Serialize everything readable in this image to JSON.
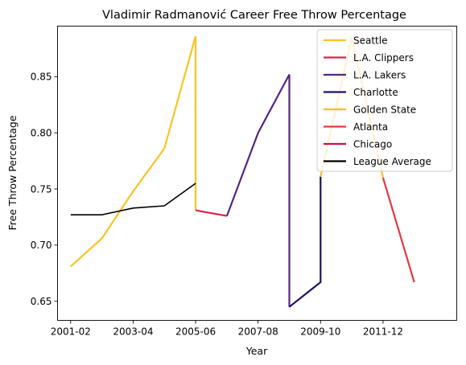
{
  "chart_data": {
    "type": "line",
    "title": "Vladimir Radmanović Career Free Throw Percentage",
    "xlabel": "Year",
    "ylabel": "Free Throw Percentage",
    "x_ticks": [
      "2001-02",
      "2003-04",
      "2005-06",
      "2007-08",
      "2009-10",
      "2011-12"
    ],
    "y_ticks": [
      "0.65",
      "0.70",
      "0.75",
      "0.80",
      "0.85"
    ],
    "xlim": [
      2000.58,
      2013.36
    ],
    "ylim": [
      0.633,
      0.895
    ],
    "grid": false,
    "legend_position": "upper right",
    "series": [
      {
        "name": "Seattle",
        "color": "#FDC322",
        "points": [
          [
            2001,
            0.681
          ],
          [
            2002,
            0.706
          ],
          [
            2003,
            0.748
          ],
          [
            2004,
            0.786
          ],
          [
            2005,
            0.886
          ],
          [
            2005,
            0.731
          ]
        ]
      },
      {
        "name": "L.A. Clippers",
        "color": "#E0214E",
        "points": [
          [
            2005,
            0.731
          ],
          [
            2006,
            0.726
          ]
        ]
      },
      {
        "name": "L.A. Lakers",
        "color": "#552583",
        "points": [
          [
            2006,
            0.726
          ],
          [
            2007,
            0.8
          ],
          [
            2008,
            0.852
          ],
          [
            2008,
            0.645
          ]
        ]
      },
      {
        "name": "Charlotte",
        "color": "#1D1160",
        "points": [
          [
            2008,
            0.645
          ],
          [
            2009,
            0.667
          ],
          [
            2009,
            0.761
          ]
        ]
      },
      {
        "name": "Golden State",
        "color": "#FDB927",
        "points": [
          [
            2009,
            0.761
          ],
          [
            2010,
            0.885
          ],
          [
            2011,
            0.76
          ]
        ]
      },
      {
        "name": "Atlanta",
        "color": "#E03A3E",
        "points": [
          [
            2011,
            0.76
          ],
          [
            2012,
            0.667
          ]
        ]
      },
      {
        "name": "Chicago",
        "color": "#CE1141",
        "points": []
      },
      {
        "name": "League Average",
        "color": "#000000",
        "points": [
          [
            2001,
            0.727
          ],
          [
            2002,
            0.727
          ],
          [
            2003,
            0.733
          ],
          [
            2004,
            0.735
          ],
          [
            2005,
            0.755
          ]
        ]
      }
    ]
  }
}
